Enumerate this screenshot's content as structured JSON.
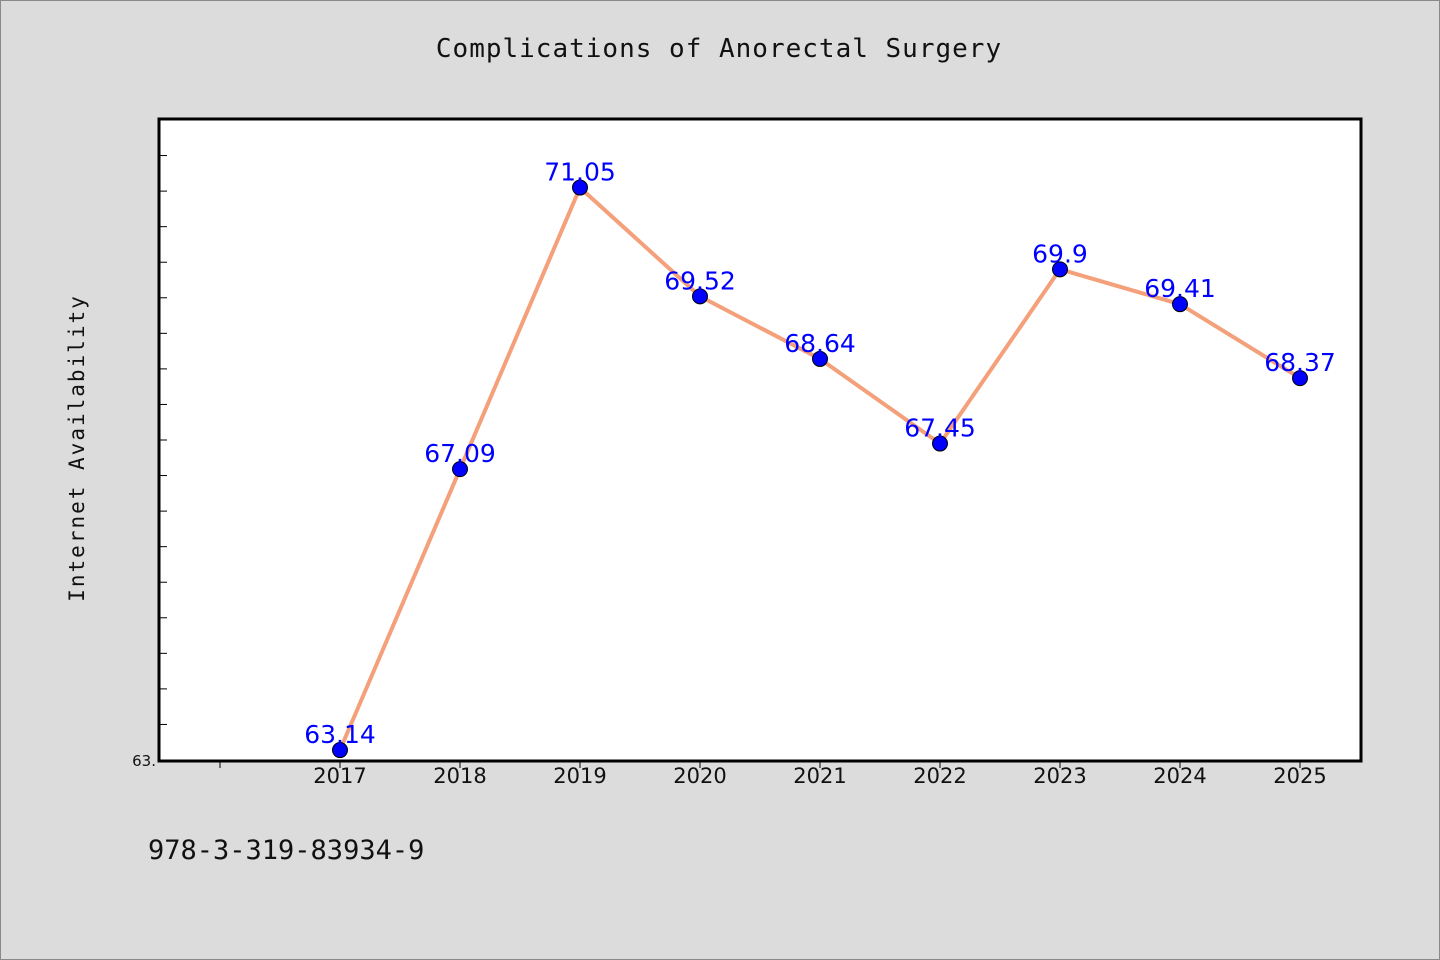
{
  "chart_data": {
    "type": "line",
    "title": "Complications of Anorectal Surgery",
    "ylabel": "Internet Availability",
    "xlabel": "",
    "categories": [
      "2017",
      "2018",
      "2019",
      "2020",
      "2021",
      "2022",
      "2023",
      "2024",
      "2025"
    ],
    "series": [
      {
        "values": [
          63.14,
          67.09,
          71.05,
          69.52,
          68.64,
          67.45,
          69.9,
          69.41,
          68.37
        ],
        "labels": [
          "63.14",
          "67.09",
          "71.05",
          "69.52",
          "68.64",
          "67.45",
          "69.9",
          "69.41",
          "68.37"
        ]
      }
    ],
    "ylim": [
      63.0,
      72.0
    ],
    "y_tick_label": "63.",
    "line_color": "#f4a07a",
    "marker_color": "#0000ff",
    "label_color": "#0000ff",
    "grid": false
  },
  "footer": {
    "code": "978-3-319-83934-9"
  }
}
